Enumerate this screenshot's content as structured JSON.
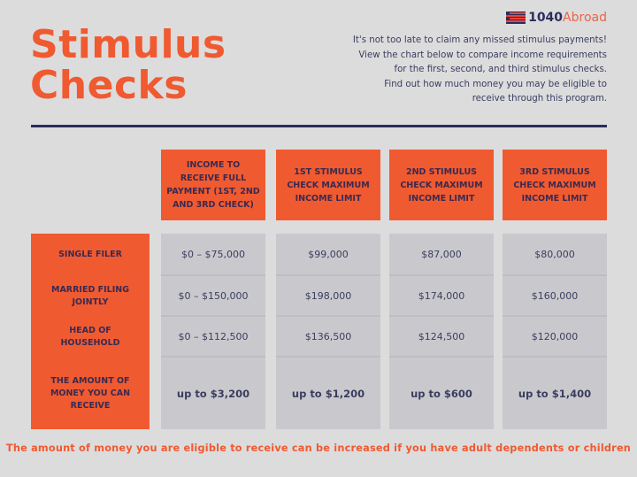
{
  "title": [
    "Stimulus",
    "Checks"
  ],
  "logo": {
    "number": "1040",
    "word": "Abroad",
    "icon": "us-flag-icon"
  },
  "intro": [
    "It's not too late to claim any missed stimulus payments!",
    "View the chart below to compare income requirements",
    "for the first, second, and third stimulus checks.",
    "Find out how much money you may be eligible to",
    "receive through this program."
  ],
  "colors": {
    "accent": "#f05a30",
    "navy": "#2b2d5e",
    "cell": "#c9c9cd",
    "background": "#dcdcdd"
  },
  "table": {
    "headers": [
      "INCOME TO RECEIVE FULL PAYMENT (1ST, 2ND AND 3RD CHECK)",
      "1ST STIMULUS CHECK MAXIMUM INCOME LIMIT",
      "2ND STIMULUS CHECK MAXIMUM INCOME LIMIT",
      "3RD STIMULUS CHECK MAXIMUM INCOME LIMIT"
    ],
    "row_labels": [
      "SINGLE FILER",
      "MARRIED FILING JOINTLY",
      "HEAD OF HOUSEHOLD",
      "THE AMOUNT OF MONEY YOU CAN RECEIVE"
    ],
    "columns": [
      [
        "$0 – $75,000",
        "$0 – $150,000",
        "$0 – $112,500",
        "up to $3,200"
      ],
      [
        "$99,000",
        "$198,000",
        "$136,500",
        "up to $1,200"
      ],
      [
        "$87,000",
        "$174,000",
        "$124,500",
        "up to $600"
      ],
      [
        "$80,000",
        "$160,000",
        "$120,000",
        "up to $1,400"
      ]
    ]
  },
  "footer": "The amount of money you are eligible to receive can be increased if you have adult dependents or children"
}
